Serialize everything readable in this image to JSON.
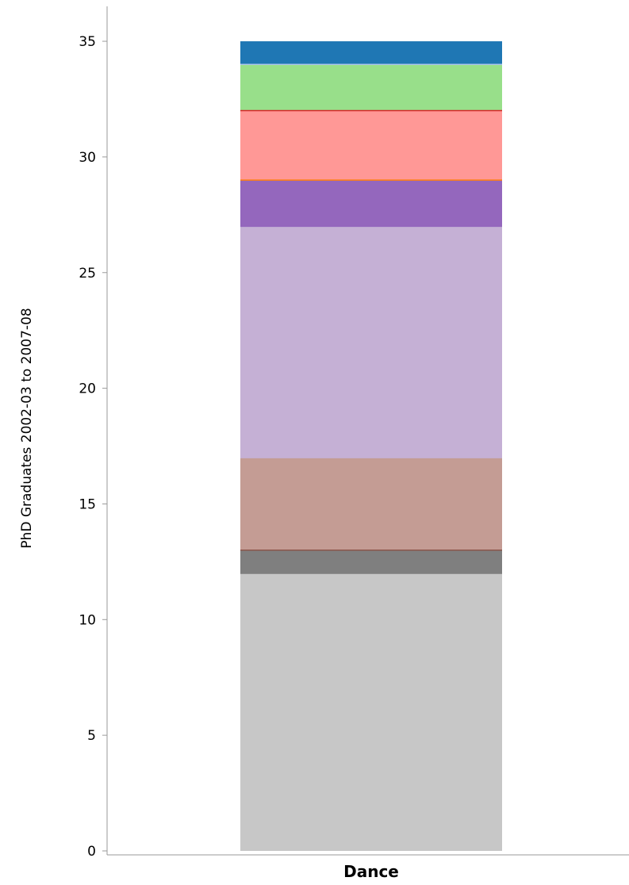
{
  "chart_data": {
    "type": "bar",
    "stacked": true,
    "categories": [
      "Dance"
    ],
    "ylabel": "PhD Graduates 2002-03 to 2007-08",
    "ylim": [
      0,
      36
    ],
    "yticks": [
      0,
      5,
      10,
      15,
      20,
      25,
      30,
      35
    ],
    "grid": false,
    "legend": "none",
    "segments": [
      {
        "value": 12,
        "color": "#c7c7c7"
      },
      {
        "value": 1,
        "color": "#7f7f7f"
      },
      {
        "value": 4,
        "color": "#c49c94"
      },
      {
        "value": 10,
        "color": "#c5b0d5"
      },
      {
        "value": 2,
        "color": "#9467bd"
      },
      {
        "value": 3,
        "color": "#ff9896"
      },
      {
        "value": 2,
        "color": "#98df8a"
      },
      {
        "value": 1,
        "color": "#1f77b4"
      }
    ],
    "segment_separator_colors": [
      "#7f7f7f",
      "#8c564b",
      "#c5b0d5",
      "#9467bd",
      "#ff7f0e",
      "#d62728",
      "#aec7e8"
    ]
  }
}
